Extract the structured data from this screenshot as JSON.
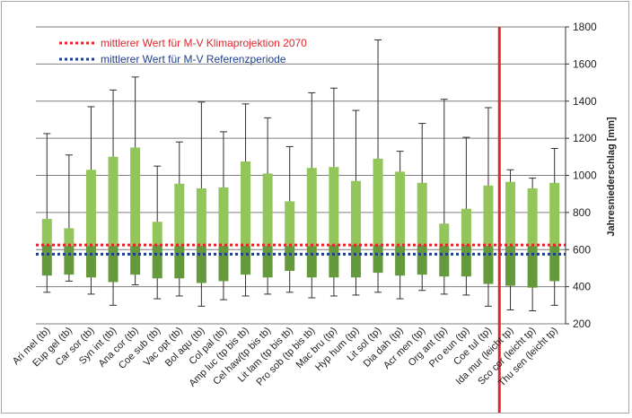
{
  "chart_data": {
    "type": "boxplot",
    "title": "",
    "xlabel": "",
    "ylabel": "Jahresniederschlag [mm]",
    "ylim": [
      200,
      1800
    ],
    "yticks": [
      200,
      400,
      600,
      800,
      1000,
      1200,
      1400,
      1600,
      1800
    ],
    "grid": true,
    "legend_position": "top-left",
    "colors": {
      "upper_box": "#92c55a",
      "lower_box": "#649a3c",
      "whisker": "#303030",
      "grid": "#7f7f7f",
      "future_line": "#e0262b",
      "reference_line": "#1f3f8c",
      "divider": "#e0262b"
    },
    "reference_lines": [
      {
        "name": "mittlerer Wert für M-V Klimaprojektion 2070",
        "value": 625,
        "style": "dotted",
        "color": "#e0262b"
      },
      {
        "name": "mittlerer Wert für M-V Referenzperiode",
        "value": 575,
        "style": "dotted",
        "color": "#1f3f8c"
      }
    ],
    "divider_after_category": "Coe tul (tp)",
    "categories": [
      "Ari mel (tb)",
      "Eup gel (tb)",
      "Car sor (tb)",
      "Syn int (tb)",
      "Ana cor (tb)",
      "Coe sub (tb)",
      "Vac opt (tb)",
      "Bol aqu (tb)",
      "Col pal (tb)",
      "Amp luc (tp bis tb)",
      "Cel haw(tp bis tb)",
      "Lit lam (tp bis tb)",
      "Pro sob (tp bis tb)",
      "Mac bru (tp)",
      "Hyp hum (tp)",
      "Lit sol (tp)",
      "Dia dah (tp)",
      "Acr men (tp)",
      "Org ant (tp)",
      "Pro eun (tp)",
      "Coe tul (tp)",
      "Ida mur (leicht tp)",
      "Sco cor (leicht tp)",
      "Thu sen (leicht tp)"
    ],
    "series": [
      {
        "name": "Minimum",
        "values": [
          370,
          430,
          360,
          300,
          410,
          335,
          350,
          295,
          330,
          350,
          360,
          370,
          340,
          350,
          355,
          370,
          335,
          380,
          360,
          355,
          295,
          275,
          270,
          300
        ]
      },
      {
        "name": "Unteres Quartil",
        "values": [
          460,
          465,
          450,
          425,
          465,
          445,
          445,
          420,
          430,
          465,
          450,
          485,
          450,
          450,
          450,
          475,
          460,
          465,
          455,
          455,
          415,
          405,
          395,
          430
        ]
      },
      {
        "name": "Median",
        "values": [
          625,
          620,
          620,
          620,
          620,
          625,
          620,
          620,
          620,
          620,
          620,
          620,
          620,
          625,
          625,
          625,
          620,
          625,
          620,
          625,
          620,
          620,
          620,
          620
        ]
      },
      {
        "name": "Oberes Quartil",
        "values": [
          765,
          715,
          1030,
          1100,
          1150,
          750,
          955,
          930,
          935,
          1075,
          1010,
          860,
          1040,
          1045,
          970,
          1090,
          1020,
          960,
          740,
          820,
          945,
          965,
          930,
          960
        ]
      },
      {
        "name": "Maximum",
        "values": [
          1225,
          1110,
          1370,
          1460,
          1530,
          1050,
          1180,
          1395,
          1235,
          1385,
          1310,
          1155,
          1445,
          1470,
          1350,
          1730,
          1130,
          1280,
          1410,
          1205,
          1365,
          1030,
          985,
          1145
        ]
      }
    ]
  }
}
